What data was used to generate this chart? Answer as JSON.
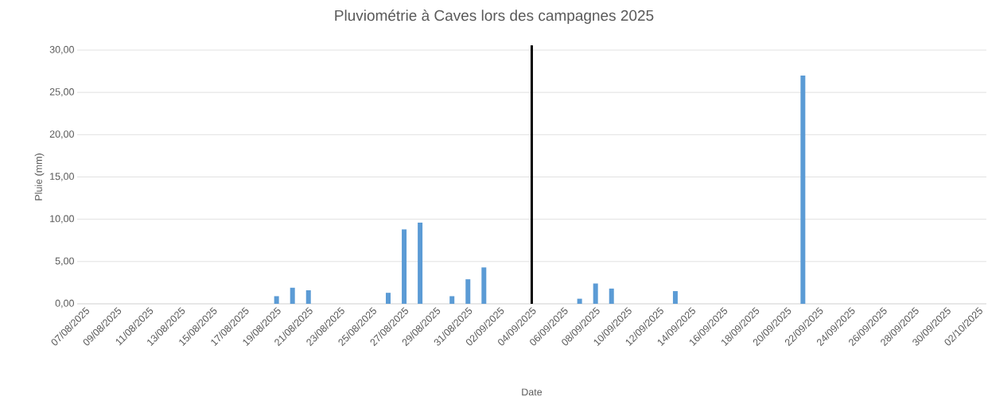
{
  "chart_data": {
    "type": "bar",
    "title": "Pluviométrie à Caves lors des campagnes 2025",
    "xlabel": "Date",
    "ylabel": "Pluie (mm)",
    "categories": [
      "07/08/2025",
      null,
      "09/08/2025",
      null,
      "11/08/2025",
      null,
      "13/08/2025",
      null,
      "15/08/2025",
      null,
      "17/08/2025",
      null,
      "19/08/2025",
      null,
      "21/08/2025",
      null,
      "23/08/2025",
      null,
      "25/08/2025",
      null,
      "27/08/2025",
      null,
      "29/08/2025",
      null,
      "31/08/2025",
      null,
      "02/09/2025",
      null,
      "04/09/2025",
      null,
      "06/09/2025",
      null,
      "08/09/2025",
      null,
      "10/09/2025",
      null,
      "12/09/2025",
      null,
      "14/09/2025",
      null,
      "16/09/2025",
      null,
      "18/09/2025",
      null,
      "20/09/2025",
      null,
      "22/09/2025",
      null,
      "24/09/2025",
      null,
      "26/09/2025",
      null,
      "28/09/2025",
      null,
      "30/09/2025",
      null,
      "02/10/2025"
    ],
    "values": [
      0,
      0,
      0,
      0,
      0,
      0,
      0,
      0,
      0,
      0,
      0,
      0,
      0.9,
      1.9,
      1.6,
      0,
      0,
      0,
      0,
      1.3,
      8.8,
      9.6,
      0,
      0.9,
      2.9,
      4.3,
      0,
      0,
      0,
      0,
      0,
      0.6,
      2.4,
      1.8,
      0,
      0,
      0,
      1.5,
      0,
      0,
      0,
      0,
      0,
      0,
      0,
      27.0,
      0,
      0,
      0,
      0,
      0,
      0,
      0,
      0,
      0,
      0,
      0
    ],
    "color": "#5b9bd5",
    "ylim": [
      0,
      30
    ],
    "yticks": [
      {
        "value": 0,
        "label": "0,00"
      },
      {
        "value": 5,
        "label": "5,00"
      },
      {
        "value": 10,
        "label": "10,00"
      },
      {
        "value": 15,
        "label": "15,00"
      },
      {
        "value": 20,
        "label": "20,00"
      },
      {
        "value": 25,
        "label": "25,00"
      },
      {
        "value": 30,
        "label": "30,00"
      }
    ],
    "ref_lines": [
      {
        "axis": "x",
        "value": "04/09/2025",
        "color": "#000000"
      }
    ],
    "grid": "y"
  }
}
